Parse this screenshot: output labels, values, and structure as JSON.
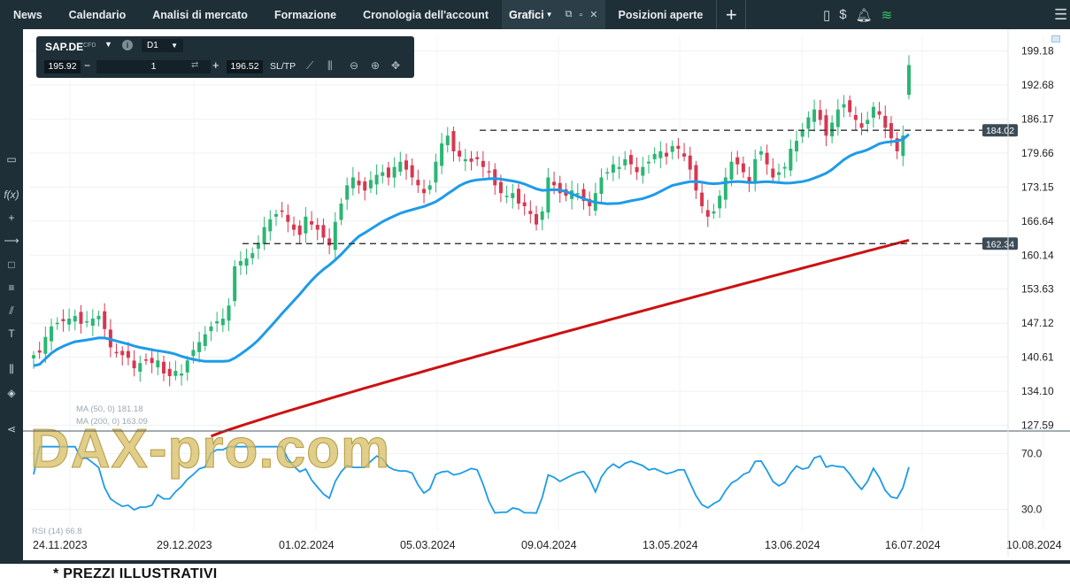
{
  "nav": {
    "tabs": [
      {
        "label": "News"
      },
      {
        "label": "Calendario"
      },
      {
        "label": "Analisi di mercato"
      },
      {
        "label": "Formazione"
      },
      {
        "label": "Cronologia dell'account"
      }
    ],
    "active_tab": {
      "label": "Grafici"
    },
    "after_tab": {
      "label": "Posizioni aperte"
    }
  },
  "instrument": {
    "symbol": "SAP.DE",
    "type": "CFD",
    "timeframe": "D1",
    "bid": "195.92",
    "quantity": "1",
    "ask": "196.52",
    "sltp_label": "SL/TP"
  },
  "watermark": "DAX-pro.com",
  "overlay_faint": {
    "ma_fast": "MA (50, 0) 181.18",
    "ma_slow": "MA (200, 0) 163.09",
    "rsi": "RSI (14) 66.8"
  },
  "footnote": "* PREZZI ILLUSTRATIVI",
  "chart_data": {
    "type": "candlestick",
    "price_axis": {
      "ticks": [
        "199.18",
        "192.68",
        "186.17",
        "179.66",
        "173.15",
        "166.64",
        "160.14",
        "153.63",
        "147.12",
        "140.61",
        "134.10",
        "127.59"
      ],
      "range": [
        126.5,
        202.0
      ]
    },
    "rsi_axis": {
      "ticks": [
        "70.0",
        "30.0"
      ],
      "range": [
        15,
        85
      ]
    },
    "x_labels": [
      "24.11.2023",
      "29.12.2023",
      "01.02.2024",
      "05.03.2024",
      "09.04.2024",
      "13.05.2024",
      "13.06.2024",
      "16.07.2024",
      "10.08.2024"
    ],
    "levels": [
      {
        "label": "184.02",
        "value": 184.02
      },
      {
        "label": "162.34",
        "value": 162.34
      }
    ],
    "closes": [
      141.0,
      141.5,
      144.5,
      146.5,
      147.2,
      147.5,
      148.0,
      148.5,
      147.0,
      147.5,
      148.0,
      148.5,
      146.0,
      142.5,
      141.5,
      141.0,
      140.5,
      138.5,
      139.5,
      140.0,
      139.5,
      140.0,
      137.5,
      137.0,
      138.0,
      137.5,
      140.0,
      142.0,
      143.5,
      145.0,
      146.5,
      147.5,
      148.0,
      150.5,
      158.0,
      159.0,
      159.5,
      160.5,
      162.5,
      165.5,
      167.0,
      168.0,
      168.5,
      166.5,
      165.0,
      164.0,
      167.5,
      166.0,
      165.0,
      163.5,
      162.0,
      166.5,
      170.0,
      173.5,
      175.0,
      173.5,
      172.5,
      174.5,
      175.5,
      176.0,
      175.0,
      177.0,
      178.0,
      176.5,
      175.0,
      173.5,
      172.0,
      173.5,
      178.0,
      181.5,
      183.0,
      180.0,
      179.0,
      178.5,
      178.0,
      178.5,
      177.0,
      176.0,
      173.5,
      172.0,
      171.5,
      172.0,
      170.0,
      169.5,
      168.0,
      166.0,
      168.5,
      175.0,
      173.5,
      172.0,
      171.5,
      172.5,
      172.0,
      170.5,
      169.5,
      172.0,
      175.0,
      176.0,
      177.5,
      177.0,
      178.5,
      177.5,
      176.0,
      177.0,
      178.0,
      179.5,
      180.0,
      179.0,
      181.0,
      180.5,
      179.0,
      176.5,
      172.5,
      169.5,
      167.5,
      168.5,
      171.5,
      175.0,
      178.0,
      177.5,
      176.0,
      174.0,
      178.5,
      180.0,
      177.5,
      175.0,
      176.0,
      177.0,
      180.5,
      182.0,
      184.0,
      186.5,
      188.0,
      186.0,
      183.0,
      185.5,
      188.0,
      189.0,
      187.5,
      186.0,
      184.5,
      186.0,
      188.5,
      187.0,
      184.5,
      182.5,
      180.0,
      183.0,
      196.5
    ],
    "series": [
      {
        "name": "MA (50, 0)",
        "color": "#1e9be8"
      },
      {
        "name": "MA (200, 0)",
        "color": "#cc1111"
      },
      {
        "name": "RSI (14)",
        "color": "#1e9be8"
      }
    ],
    "up_color": "#2bb673",
    "down_color": "#d9364f"
  }
}
